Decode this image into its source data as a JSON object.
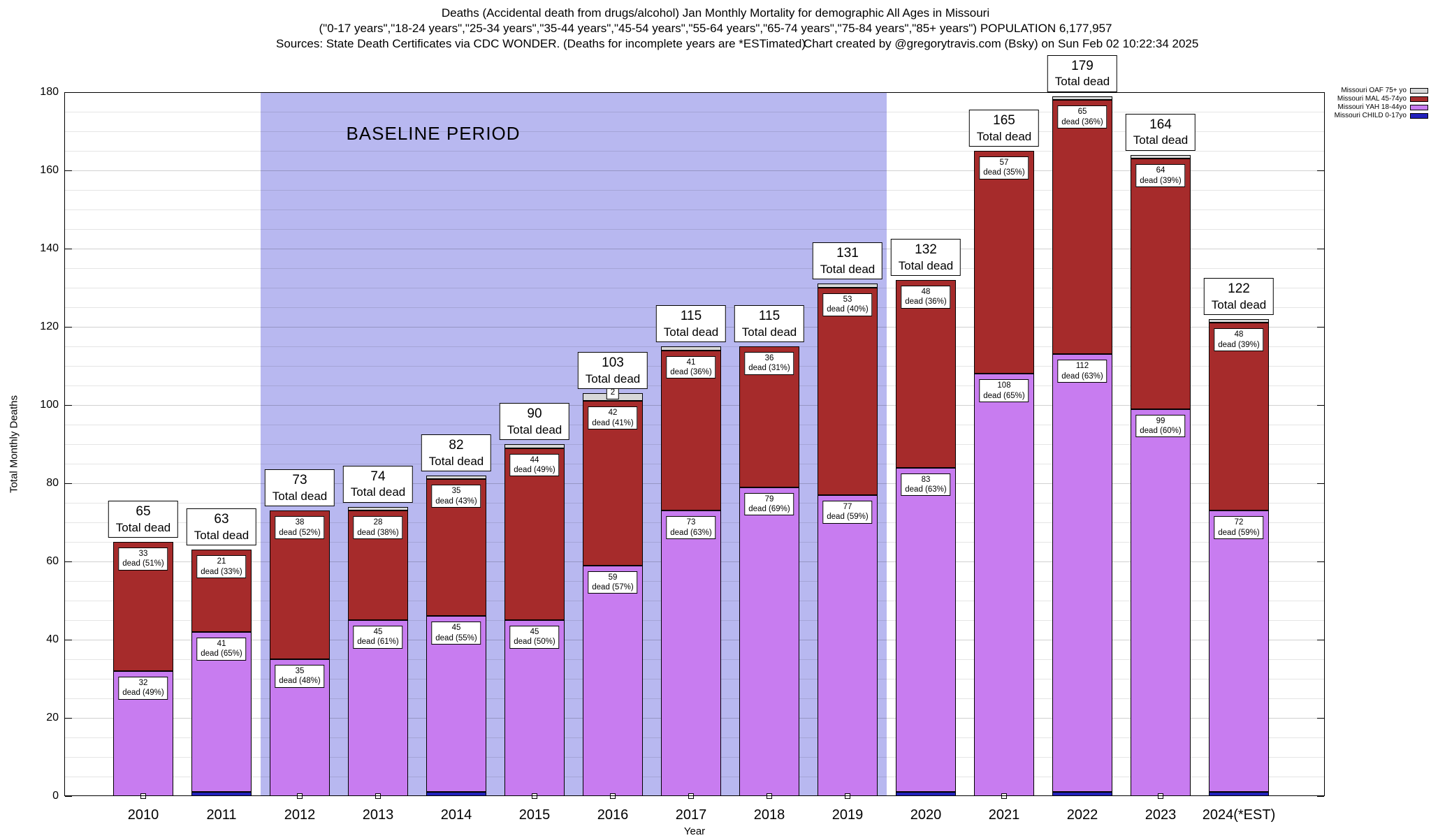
{
  "title": {
    "line1": "Deaths (Accidental death from drugs/alcohol) Jan Monthly Mortality for demographic All Ages in Missouri",
    "line2": "(\"0-17 years\",\"18-24 years\",\"25-34 years\",\"35-44 years\",\"45-54 years\",\"55-64 years\",\"65-74 years\",\"75-84 years\",\"85+ years\") POPULATION 6,177,957",
    "sources": "Sources: State Death Certificates via CDC WONDER. (Deaths for incomplete years are *ESTimated)",
    "credit": "Chart created by @gregorytravis.com (Bsky) on Sun Feb 02 10:22:34 2025"
  },
  "chart_data": {
    "type": "bar",
    "stacked": true,
    "title": "Deaths (Accidental death from drugs/alcohol) Jan Monthly Mortality for demographic All Ages in Missouri",
    "xlabel": "Year",
    "ylabel": "Total Monthly Deaths",
    "ylim": [
      0,
      180
    ],
    "ytick_step": 20,
    "grid": true,
    "legend_position": "top-right-outside",
    "baseline_period": {
      "label": "BASELINE PERIOD",
      "from": "2012",
      "to": "2019",
      "color": "#b8b8f0"
    },
    "total_label": "Total dead",
    "categories": [
      "2010",
      "2011",
      "2012",
      "2013",
      "2014",
      "2015",
      "2016",
      "2017",
      "2018",
      "2019",
      "2020",
      "2021",
      "2022",
      "2023",
      "2024(*EST)"
    ],
    "totals": [
      65,
      63,
      73,
      74,
      82,
      90,
      103,
      115,
      115,
      131,
      132,
      165,
      179,
      164,
      122
    ],
    "series": [
      {
        "key": "child",
        "name": "Missouri CHILD 0-17yo",
        "color": "#2222bb",
        "values": [
          0,
          1,
          0,
          0,
          1,
          0,
          0,
          0,
          0,
          0,
          1,
          0,
          1,
          0,
          1
        ],
        "sub": [
          null,
          null,
          null,
          null,
          null,
          null,
          null,
          null,
          null,
          null,
          null,
          null,
          null,
          null,
          null
        ]
      },
      {
        "key": "yah",
        "name": "Missouri YAH 18-44yo",
        "color": "#c87cf0",
        "values": [
          32,
          41,
          35,
          45,
          45,
          45,
          59,
          73,
          79,
          77,
          83,
          108,
          112,
          99,
          72
        ],
        "sub": [
          "dead (49%)",
          "dead (65%)",
          "dead (48%)",
          "dead (61%)",
          "dead (55%)",
          "dead (50%)",
          "dead (57%)",
          "dead (63%)",
          "dead (69%)",
          "dead (59%)",
          "dead (63%)",
          "dead (65%)",
          "dead (63%)",
          "dead (60%)",
          "dead (59%)"
        ]
      },
      {
        "key": "mal",
        "name": "Missouri MAL 45-74yo",
        "color": "#a62b2b",
        "values": [
          33,
          21,
          38,
          28,
          35,
          44,
          42,
          41,
          36,
          53,
          48,
          57,
          65,
          64,
          48
        ],
        "sub": [
          "dead (51%)",
          "dead (33%)",
          "dead (52%)",
          "dead (38%)",
          "dead (43%)",
          "dead (49%)",
          "dead (41%)",
          "dead (36%)",
          "dead (31%)",
          "dead (40%)",
          "dead (36%)",
          "dead (35%)",
          "dead (36%)",
          "dead (39%)",
          "dead (39%)"
        ]
      },
      {
        "key": "oaf",
        "name": "Missouri OAF 75+ yo",
        "color": "#d8d8d8",
        "values": [
          0,
          0,
          0,
          1,
          1,
          1,
          2,
          1,
          0,
          1,
          0,
          0,
          1,
          1,
          1
        ],
        "sub": [
          null,
          null,
          null,
          null,
          null,
          null,
          null,
          null,
          null,
          null,
          null,
          null,
          null,
          null,
          null
        ]
      }
    ],
    "legend": [
      {
        "label": "Missouri OAF 75+ yo",
        "color": "#d8d8d8"
      },
      {
        "label": "Missouri MAL 45-74yo",
        "color": "#a62b2b"
      },
      {
        "label": "Missouri YAH 18-44yo",
        "color": "#c87cf0"
      },
      {
        "label": "Missouri CHILD 0-17yo",
        "color": "#2222bb"
      }
    ]
  }
}
